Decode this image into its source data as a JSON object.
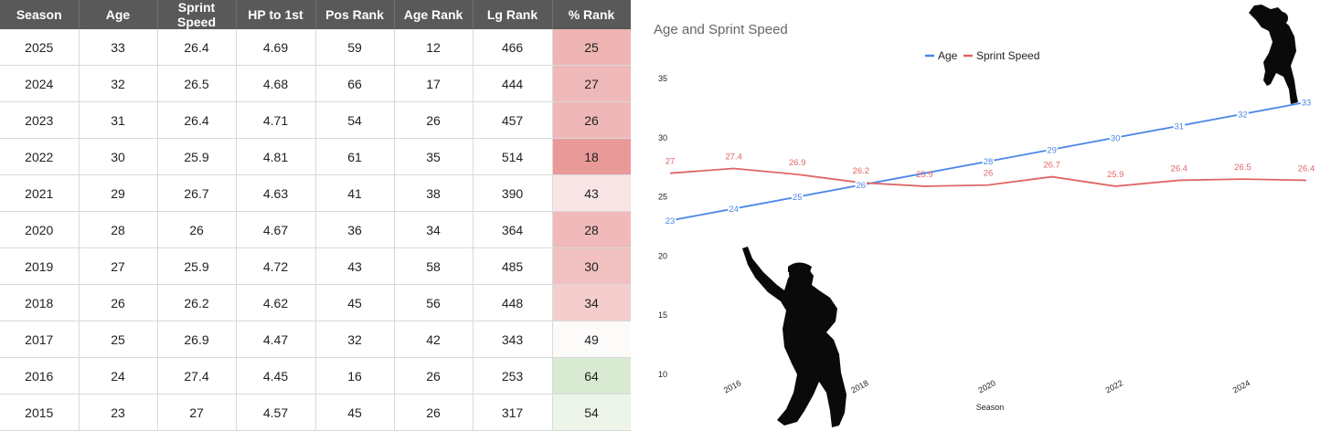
{
  "table": {
    "headers": [
      "Season",
      "Age",
      "Sprint Speed",
      "HP to 1st",
      "Pos Rank",
      "Age Rank",
      "Lg Rank",
      "% Rank"
    ],
    "rows": [
      [
        "2025",
        "33",
        "26.4",
        "4.69",
        "59",
        "12",
        "466",
        "25"
      ],
      [
        "2024",
        "32",
        "26.5",
        "4.68",
        "66",
        "17",
        "444",
        "27"
      ],
      [
        "2023",
        "31",
        "26.4",
        "4.71",
        "54",
        "26",
        "457",
        "26"
      ],
      [
        "2022",
        "30",
        "25.9",
        "4.81",
        "61",
        "35",
        "514",
        "18"
      ],
      [
        "2021",
        "29",
        "26.7",
        "4.63",
        "41",
        "38",
        "390",
        "43"
      ],
      [
        "2020",
        "28",
        "26",
        "4.67",
        "36",
        "34",
        "364",
        "28"
      ],
      [
        "2019",
        "27",
        "25.9",
        "4.72",
        "43",
        "58",
        "485",
        "30"
      ],
      [
        "2018",
        "26",
        "26.2",
        "4.62",
        "45",
        "56",
        "448",
        "34"
      ],
      [
        "2017",
        "25",
        "26.9",
        "4.47",
        "32",
        "42",
        "343",
        "49"
      ],
      [
        "2016",
        "24",
        "27.4",
        "4.45",
        "16",
        "26",
        "253",
        "64"
      ],
      [
        "2015",
        "23",
        "27",
        "4.57",
        "45",
        "26",
        "317",
        "54"
      ]
    ],
    "pct_rank_colors": [
      "#efb4b4",
      "#f0b9b9",
      "#efb7b7",
      "#ea9999",
      "#f8e4e4",
      "#f0baba",
      "#f1c0c0",
      "#f4cdcd",
      "#fdfbfa",
      "#d9ead3",
      "#edf5ea"
    ],
    "header_bg": "#595959"
  },
  "chart_data": {
    "type": "line",
    "title": "Age and Sprint Speed",
    "xlabel": "Season",
    "ylabel": "",
    "x": [
      2015,
      2016,
      2017,
      2018,
      2019,
      2020,
      2021,
      2022,
      2023,
      2024,
      2025
    ],
    "x_ticks": [
      2016,
      2018,
      2020,
      2022,
      2024
    ],
    "ylim": [
      10,
      35
    ],
    "y_ticks": [
      10,
      15,
      20,
      25,
      30,
      35
    ],
    "series": [
      {
        "name": "Age",
        "color": "#4a86e8",
        "values": [
          23,
          24,
          25,
          26,
          27,
          28,
          29,
          30,
          31,
          32,
          33
        ],
        "labels": [
          "23",
          "24",
          "25",
          "26",
          "",
          "28",
          "29",
          "30",
          "31",
          "32",
          "33"
        ]
      },
      {
        "name": "Sprint Speed",
        "color": "#e06666",
        "values": [
          27,
          27.4,
          26.9,
          26.2,
          25.9,
          26,
          26.7,
          25.9,
          26.4,
          26.5,
          26.4
        ],
        "labels": [
          "27",
          "27.4",
          "26.9",
          "26.2",
          "25.9",
          "26",
          "26.7",
          "25.9",
          "26.4",
          "26.5",
          "26.4"
        ]
      }
    ],
    "legend_position": "top-center",
    "grid": false
  },
  "decorations": {
    "silhouettes": [
      "pointing-player-silhouette",
      "celebrating-player-silhouette"
    ]
  }
}
